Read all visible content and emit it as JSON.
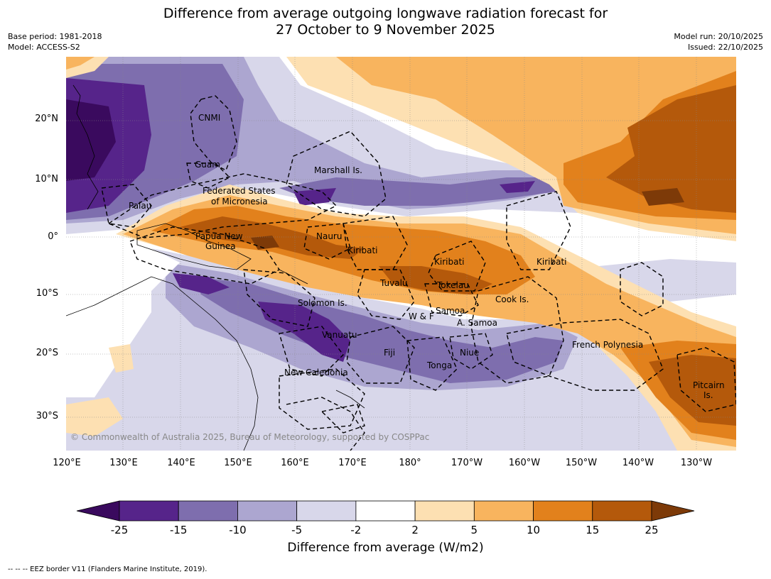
{
  "title_line1": "Difference from average outgoing longwave radiation forecast for",
  "title_line2": "27 October to 9 November 2025",
  "base_period": "Base period: 1981-2018",
  "model": "Model: ACCESS-S2",
  "model_run": "Model run: 20/10/2025",
  "issued": "Issued: 22/10/2025",
  "lat_labels": [
    "20°N",
    "10°N",
    "0°",
    "10°S",
    "20°S",
    "30°S"
  ],
  "lon_labels": [
    "120°E",
    "130°E",
    "140°E",
    "150°E",
    "160°E",
    "170°E",
    "180°",
    "170°W",
    "160°W",
    "150°W",
    "140°W",
    "130°W"
  ],
  "region_labels": {
    "cnmi": "CNMI",
    "guam": "Guam",
    "marshall": "Marshall Is.",
    "fsm1": "Federated States",
    "fsm2": "of Micronesia",
    "palau": "Palau",
    "png1": "Papua New",
    "png2": "Guinea",
    "nauru": "Nauru",
    "kiribati_w": "Kiribati",
    "kiribati_c": "Kiribati",
    "kiribati_e": "Kiribati",
    "tuvalu": "Tuvalu",
    "tokelau": "Tokelau",
    "cook": "Cook Is.",
    "solomon": "Solomon Is.",
    "wf": "W & F",
    "samoa": "Samoa",
    "asamoa": "A. Samoa",
    "vanuatu": "Vanuatu",
    "fiji": "Fiji",
    "niue": "Niue",
    "tonga": "Tonga",
    "fp": "French Polynesia",
    "newcal": "New Caledonia",
    "pitcairn1": "Pitcairn",
    "pitcairn2": "Is."
  },
  "copyright": "© Commonwealth of Australia 2025, Bureau of Meteorology, supported by COSPPac",
  "colorbar": {
    "ticks": [
      "-25",
      "-15",
      "-10",
      "-5",
      "-2",
      "2",
      "5",
      "10",
      "15",
      "25"
    ],
    "colors": [
      "#3a0a5e",
      "#56248a",
      "#7e6eae",
      "#aca6d0",
      "#d8d7ea",
      "#ffffff",
      "#fde0b2",
      "#f8b45e",
      "#e2811c",
      "#b4590b",
      "#7d3a08"
    ],
    "label": "Difference from average (W/m2)"
  },
  "footnote": "--  --  -- EEZ border V11 (Flanders Marine Institute, 2019)."
}
